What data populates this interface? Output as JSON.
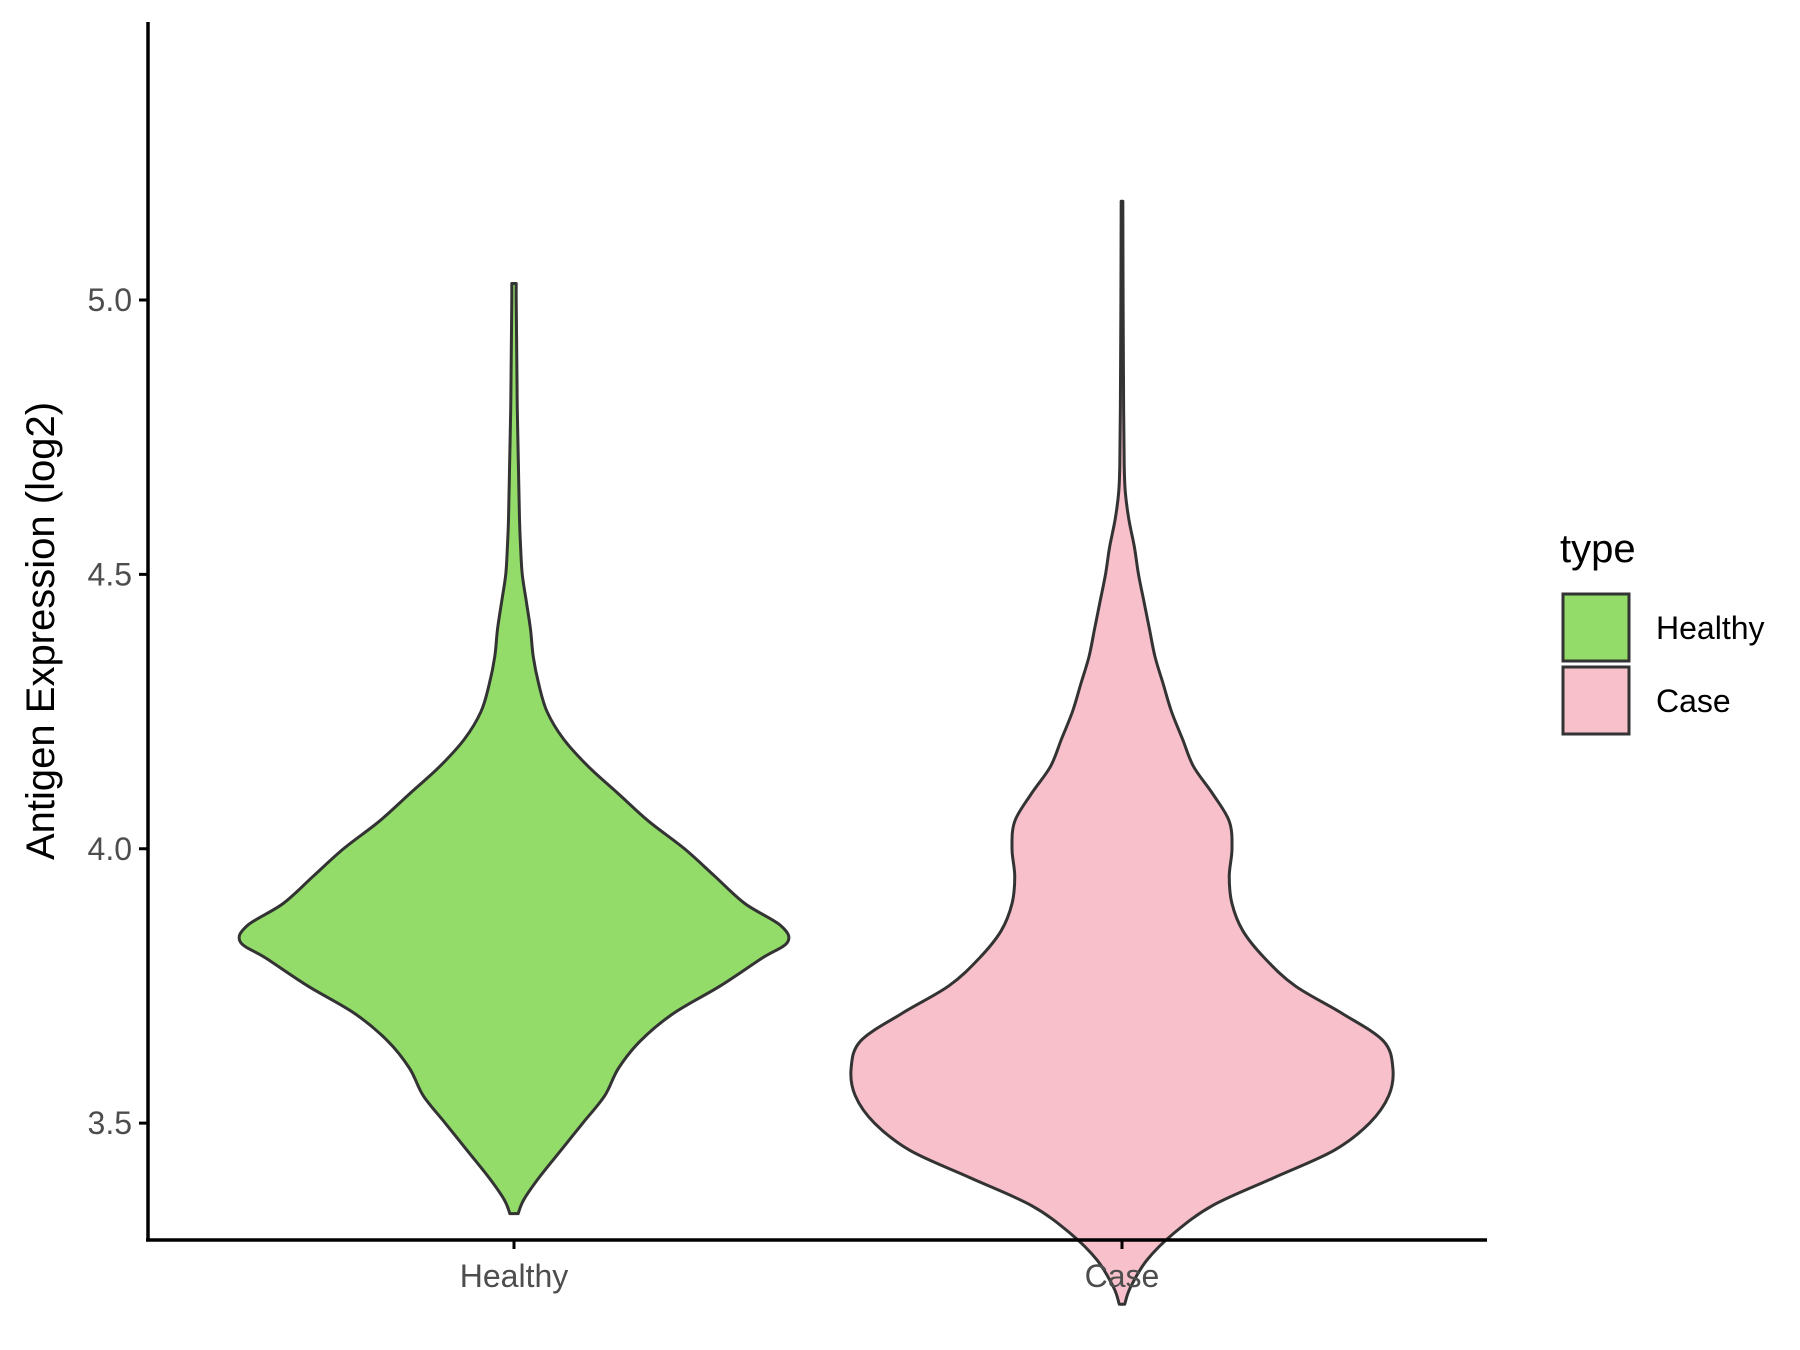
{
  "chart_data": {
    "type": "violin",
    "title": "",
    "xlabel": "",
    "ylabel": "Antigen Expression (log2)",
    "categories": [
      "Healthy",
      "Case"
    ],
    "ylim": [
      3.05,
      5.28
    ],
    "yticks": [
      3.5,
      4.0,
      4.5,
      5.0
    ],
    "ytick_labels": [
      "3.5",
      "4.0",
      "4.5",
      "5.0"
    ],
    "grid": false,
    "legend": {
      "title": "type",
      "position": "right",
      "entries": [
        {
          "label": "Healthy",
          "color": "#93dc6a"
        },
        {
          "label": "Case",
          "color": "#f7c0cb"
        }
      ]
    },
    "series": [
      {
        "category": "Healthy",
        "color": "#93dc6a",
        "min": 3.335,
        "max": 5.03,
        "density_profile": [
          [
            3.335,
            0.015
          ],
          [
            3.36,
            0.035
          ],
          [
            3.4,
            0.09
          ],
          [
            3.45,
            0.17
          ],
          [
            3.5,
            0.25
          ],
          [
            3.55,
            0.33
          ],
          [
            3.6,
            0.38
          ],
          [
            3.65,
            0.46
          ],
          [
            3.7,
            0.58
          ],
          [
            3.75,
            0.75
          ],
          [
            3.8,
            0.9
          ],
          [
            3.83,
            0.995
          ],
          [
            3.86,
            0.97
          ],
          [
            3.9,
            0.84
          ],
          [
            3.95,
            0.73
          ],
          [
            4.0,
            0.62
          ],
          [
            4.05,
            0.49
          ],
          [
            4.1,
            0.38
          ],
          [
            4.15,
            0.27
          ],
          [
            4.2,
            0.18
          ],
          [
            4.25,
            0.12
          ],
          [
            4.3,
            0.09
          ],
          [
            4.35,
            0.07
          ],
          [
            4.4,
            0.06
          ],
          [
            4.45,
            0.045
          ],
          [
            4.5,
            0.03
          ],
          [
            4.55,
            0.024
          ],
          [
            4.6,
            0.02
          ],
          [
            4.7,
            0.016
          ],
          [
            4.8,
            0.012
          ],
          [
            4.9,
            0.01
          ],
          [
            5.0,
            0.008
          ],
          [
            5.03,
            0.008
          ]
        ]
      },
      {
        "category": "Case",
        "color": "#f7c0cb",
        "min": 3.17,
        "max": 5.18,
        "density_profile": [
          [
            3.17,
            0.01
          ],
          [
            3.2,
            0.03
          ],
          [
            3.25,
            0.09
          ],
          [
            3.3,
            0.19
          ],
          [
            3.35,
            0.33
          ],
          [
            3.4,
            0.55
          ],
          [
            3.45,
            0.77
          ],
          [
            3.5,
            0.9
          ],
          [
            3.55,
            0.97
          ],
          [
            3.6,
            0.985
          ],
          [
            3.65,
            0.95
          ],
          [
            3.7,
            0.8
          ],
          [
            3.75,
            0.63
          ],
          [
            3.8,
            0.52
          ],
          [
            3.85,
            0.44
          ],
          [
            3.9,
            0.4
          ],
          [
            3.95,
            0.39
          ],
          [
            4.0,
            0.4
          ],
          [
            4.05,
            0.39
          ],
          [
            4.1,
            0.33
          ],
          [
            4.15,
            0.26
          ],
          [
            4.2,
            0.22
          ],
          [
            4.25,
            0.18
          ],
          [
            4.3,
            0.15
          ],
          [
            4.35,
            0.12
          ],
          [
            4.4,
            0.1
          ],
          [
            4.45,
            0.08
          ],
          [
            4.5,
            0.06
          ],
          [
            4.55,
            0.045
          ],
          [
            4.6,
            0.025
          ],
          [
            4.65,
            0.012
          ],
          [
            4.7,
            0.008
          ],
          [
            4.8,
            0.006
          ],
          [
            5.0,
            0.004
          ],
          [
            5.18,
            0.003
          ]
        ]
      }
    ]
  }
}
